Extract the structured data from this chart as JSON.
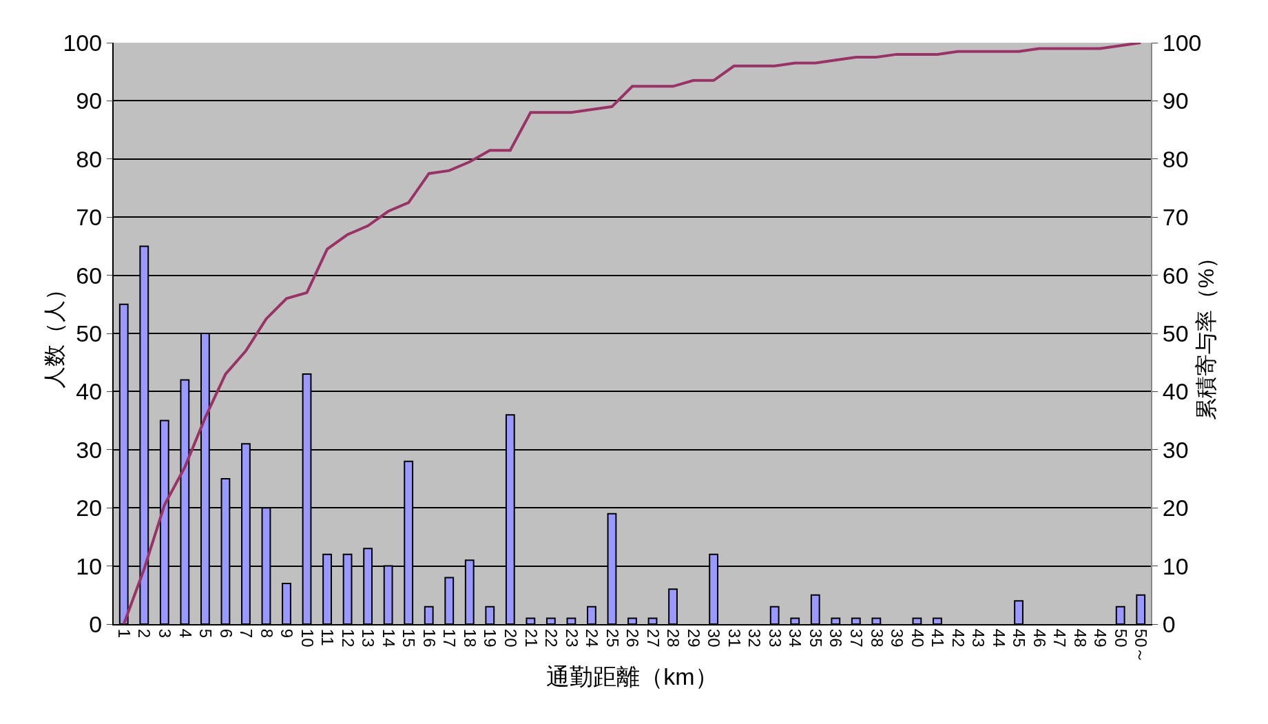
{
  "chart_data": {
    "type": "bar",
    "xlabel": "通勤距離（km）",
    "ylabel": "人数（人）",
    "y2label": "累積寄与率（%）",
    "categories": [
      "1",
      "2",
      "3",
      "4",
      "5",
      "6",
      "7",
      "8",
      "9",
      "10",
      "11",
      "12",
      "13",
      "14",
      "15",
      "16",
      "17",
      "18",
      "19",
      "20",
      "21",
      "22",
      "23",
      "24",
      "25",
      "26",
      "27",
      "28",
      "29",
      "30",
      "31",
      "32",
      "33",
      "34",
      "35",
      "36",
      "37",
      "38",
      "39",
      "40",
      "41",
      "42",
      "43",
      "44",
      "45",
      "46",
      "47",
      "48",
      "49",
      "50",
      "50～"
    ],
    "series": [
      {
        "color": "#9999ff",
        "values": [
          55,
          65,
          35,
          42,
          50,
          25,
          31,
          20,
          7,
          43,
          12,
          12,
          13,
          10,
          28,
          3,
          8,
          11,
          3,
          36,
          1,
          1,
          1,
          3,
          19,
          1,
          1,
          6,
          0,
          12,
          0,
          0,
          3,
          1,
          5,
          1,
          1,
          1,
          0,
          1,
          1,
          0,
          0,
          0,
          4,
          0,
          0,
          0,
          0,
          3,
          5
        ]
      },
      {
        "type": "line",
        "axis": "y2",
        "color": "#993366",
        "values": [
          0,
          9.5,
          20.5,
          27,
          35.5,
          43,
          47,
          52.5,
          56,
          57,
          64.5,
          67,
          68.5,
          71,
          72.5,
          77.5,
          78,
          79.5,
          81.5,
          81.5,
          88,
          88,
          88,
          88.5,
          89,
          92.5,
          92.5,
          92.5,
          93.5,
          93.5,
          96,
          96,
          96,
          96.5,
          96.5,
          97,
          97.5,
          97.5,
          98,
          98,
          98,
          98.5,
          98.5,
          98.5,
          98.5,
          99,
          99,
          99,
          99,
          99.5,
          100
        ]
      }
    ],
    "ylim": [
      0,
      100
    ],
    "yticks": [
      0,
      10,
      20,
      30,
      40,
      50,
      60,
      70,
      80,
      90,
      100
    ],
    "y2lim": [
      0,
      100
    ],
    "y2ticks": [
      0,
      10,
      20,
      30,
      40,
      50,
      60,
      70,
      80,
      90,
      100
    ],
    "grid": "y",
    "legend": false,
    "marker": "none"
  }
}
